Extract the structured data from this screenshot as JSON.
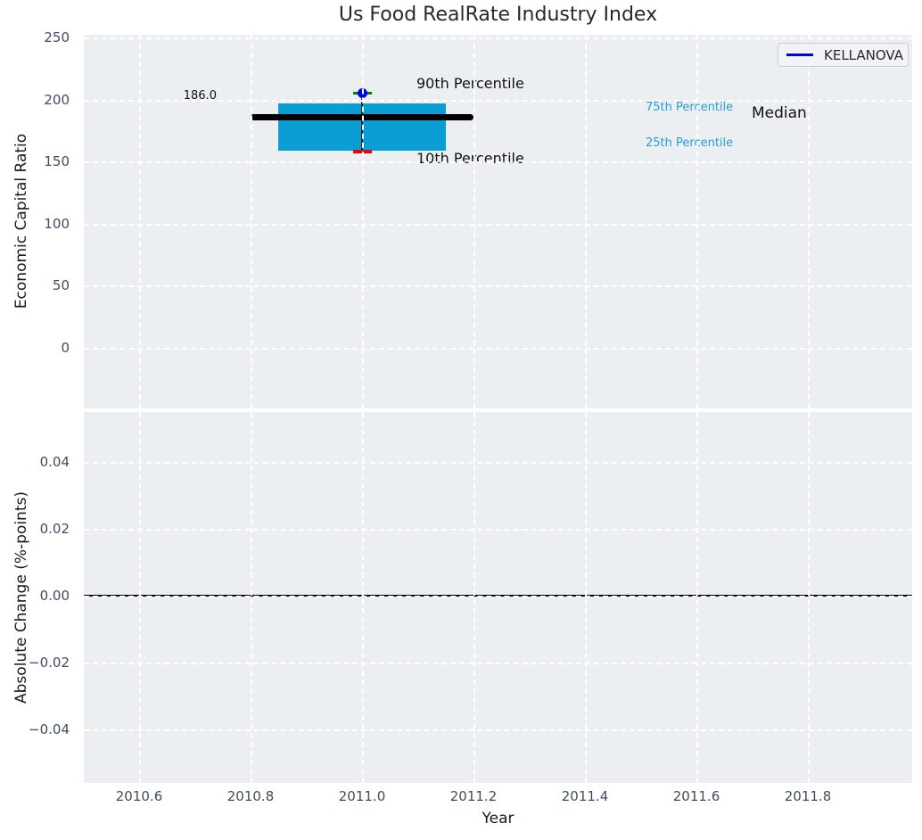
{
  "title": "Us Food RealRate Industry Index",
  "legend": {
    "label": "KELLANOVA",
    "line_color": "#0000e0"
  },
  "colors": {
    "plot_bg": "#eceff1",
    "grid": "#ffffff",
    "box": "#0a9ed4",
    "median": "#000000",
    "p90_marker": "#0000e0",
    "p90_cap": "#007d02",
    "p10_cap": "#e8000b",
    "whisker": "#222222",
    "tick_text": "#3f4c63",
    "cyan_text": "#2a9dd4",
    "zero_line": "#000000"
  },
  "chart_data": [
    {
      "type": "box",
      "title": "Us Food RealRate Industry Index",
      "ylabel": "Economic Capital Ratio",
      "series": "KELLANOVA",
      "x": 2011.0,
      "box_x_range": [
        2010.85,
        2011.15
      ],
      "median_x_range": [
        2010.8,
        2011.2
      ],
      "percentiles": {
        "p10": 158,
        "p25": 159,
        "median": 186.0,
        "p75": 197,
        "p90": 205
      },
      "median_annotation": "186.0",
      "labels": {
        "p90": "90th Percentile",
        "p10": "10th Percentile",
        "p75": "75th Percentile",
        "p25": "25th Percentile",
        "median": "Median"
      },
      "yticks": [
        0,
        50,
        100,
        150,
        200,
        250
      ],
      "ylim": [
        -49,
        252
      ],
      "grid": true,
      "legend_position": "upper right"
    },
    {
      "type": "line",
      "ylabel": "Absolute Change (%-points)",
      "xlabel": "Year",
      "yticks": [
        -0.04,
        -0.02,
        0.0,
        0.02,
        0.04
      ],
      "xticks": [
        2010.6,
        2010.8,
        2011.0,
        2011.2,
        2011.4,
        2011.6,
        2011.8
      ],
      "ylim": [
        -0.056,
        0.055
      ],
      "xlim": [
        2010.5,
        2012.0
      ],
      "zero_line": 0.0,
      "series": [],
      "grid": true
    }
  ]
}
